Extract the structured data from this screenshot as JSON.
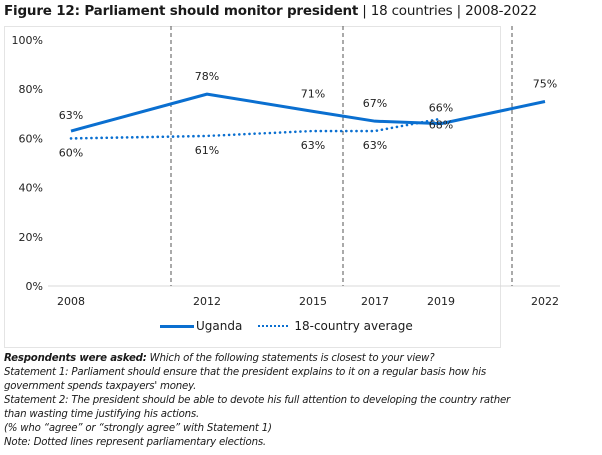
{
  "title": {
    "main": "Figure 12: Parliament should monitor president",
    "separator": " | ",
    "countries": "18 countries",
    "years": "2008-2022"
  },
  "chart_data": {
    "type": "line",
    "title": "Figure 12: Parliament should monitor president | 18 countries | 2008-2022",
    "xlabel": "",
    "ylabel": "",
    "x": [
      "2008",
      "2012",
      "2015",
      "2017",
      "2019",
      "2022"
    ],
    "ylim": [
      0,
      100
    ],
    "yticks": [
      "0%",
      "20%",
      "40%",
      "60%",
      "80%",
      "100%"
    ],
    "grid": false,
    "series": [
      {
        "name": "Uganda",
        "style": "solid",
        "color": "#0a6fd0",
        "values": [
          63,
          78,
          71,
          67,
          66,
          75
        ],
        "labels": [
          "63%",
          "78%",
          "71%",
          "67%",
          "66%",
          "75%"
        ]
      },
      {
        "name": "18-country average",
        "style": "dotted",
        "color": "#0a6fd0",
        "values": [
          60,
          61,
          63,
          63,
          68,
          null
        ],
        "labels": [
          "60%",
          "61%",
          "63%",
          "63%",
          "68%",
          null
        ]
      }
    ],
    "annotations": {
      "election_lines_between": [
        [
          "2008",
          "2012"
        ],
        [
          "2015",
          "2017"
        ],
        [
          "2019",
          "2022"
        ]
      ],
      "note": "Dotted lines represent parliamentary elections."
    },
    "legend": {
      "position": "bottom",
      "entries": [
        "Uganda",
        "18-country average"
      ]
    }
  },
  "legend": {
    "uganda": "Uganda",
    "average": "18-country average"
  },
  "notes": {
    "lead": "Respondents were asked:",
    "question": " Which of the following statements is closest to your view?",
    "s1a": "Statement 1: Parliament should ensure that the president explains to it on a regular basis how his",
    "s1b": "government spends taxpayers' money.",
    "s2a": "Statement 2: The president should be able to devote his full attention to developing the country rather",
    "s2b": "than wasting time justifying his actions.",
    "pct": "(% who “agree” or “strongly agree” with Statement 1)",
    "note": "Note: Dotted lines represent parliamentary elections."
  }
}
